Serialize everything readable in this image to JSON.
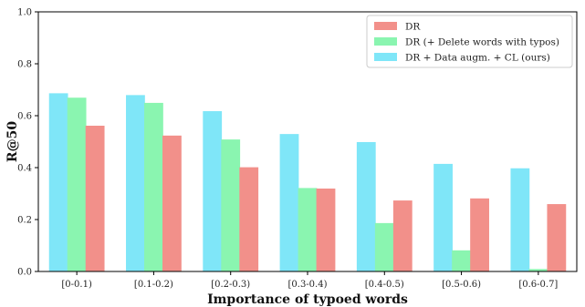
{
  "chart_data": {
    "type": "bar",
    "categories": [
      "[0-0.1)",
      "[0.1-0.2)",
      "[0.2-0.3)",
      "[0.3-0.4)",
      "[0.4-0.5)",
      "[0.5-0.6)",
      "[0.6-0.7]"
    ],
    "series": [
      {
        "name": "DR + Data augm. + CL (ours)",
        "color": "#7fe6f8",
        "values": [
          0.685,
          0.678,
          0.616,
          0.528,
          0.497,
          0.413,
          0.396
        ]
      },
      {
        "name": "DR (+ Delete words with typos)",
        "color": "#8af5b0",
        "values": [
          0.668,
          0.648,
          0.507,
          0.32,
          0.185,
          0.08,
          0.008
        ]
      },
      {
        "name": "DR",
        "color": "#f2908a",
        "values": [
          0.56,
          0.522,
          0.4,
          0.318,
          0.272,
          0.28,
          0.258
        ]
      }
    ],
    "legend_order": [
      2,
      1,
      0
    ],
    "legend_position": "top-right",
    "xlabel": "Importance of typoed words",
    "ylabel": "R@50",
    "ylim": [
      0,
      1.0
    ],
    "yticks": [
      "0.0",
      "0.2",
      "0.4",
      "0.6",
      "0.8",
      "1.0"
    ],
    "grid": false
  }
}
